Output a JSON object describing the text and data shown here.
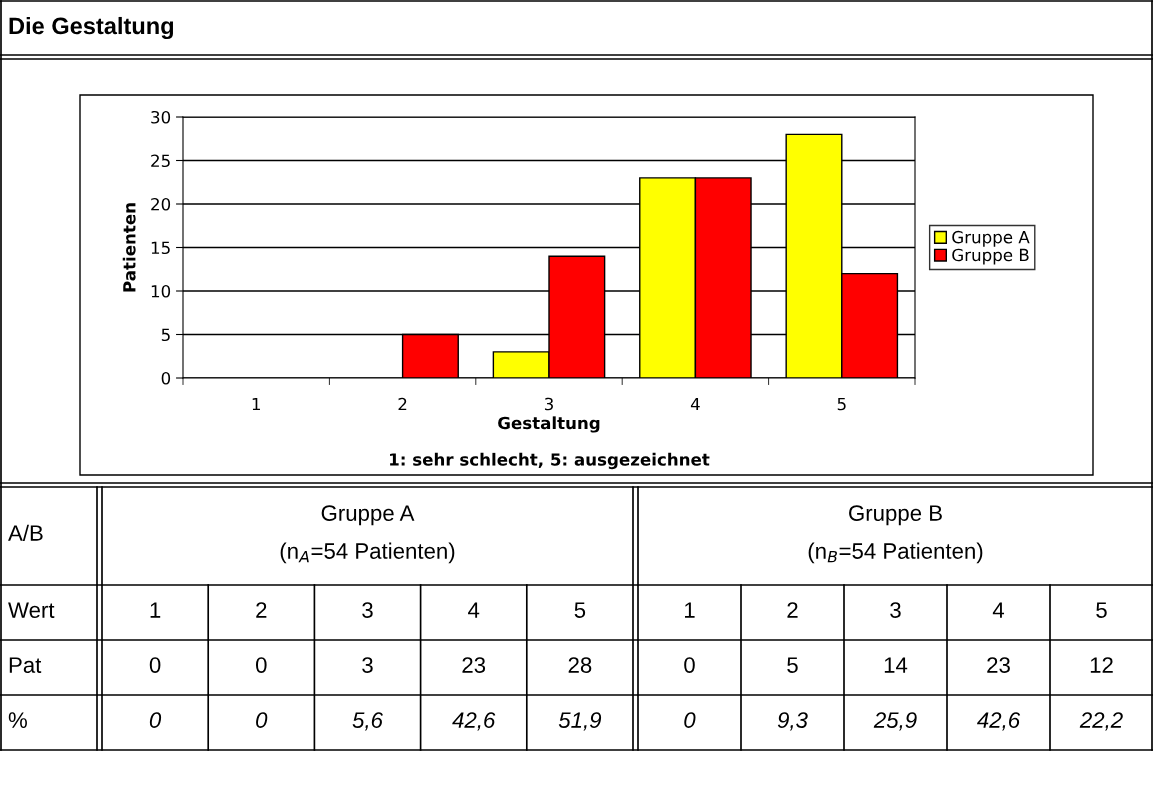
{
  "chart_data": {
    "type": "bar",
    "title": "Die Gestaltung",
    "xlabel": "Gestaltung",
    "ylabel": "Patienten",
    "categories": [
      "1",
      "2",
      "3",
      "4",
      "5"
    ],
    "series": [
      {
        "name": "Gruppe A",
        "color": "#ffff00",
        "values": [
          0,
          0,
          3,
          23,
          28
        ]
      },
      {
        "name": "Gruppe B",
        "color": "#ff0000",
        "values": [
          0,
          5,
          14,
          23,
          12
        ]
      }
    ],
    "ylim": [
      0,
      30
    ],
    "yticks": [
      0,
      5,
      10,
      15,
      20,
      25,
      30
    ],
    "grid": "y",
    "legend": "right",
    "annotations": [
      "1: sehr schlecht, 5: ausgezeichnet",
      "A/B",
      "(n$_{A}$=54 Patienten)",
      "(n$_{B}$=54 Patienten)",
      "Wert",
      "Pat",
      "%",
      "0",
      "0",
      "5,6",
      "42,6",
      "51,9",
      "0",
      "9,3",
      "25,9",
      "42,6",
      "22,2",
      "0",
      "0",
      "3",
      "23",
      "28",
      "0",
      "5",
      "14",
      "23",
      "12"
    ]
  }
}
